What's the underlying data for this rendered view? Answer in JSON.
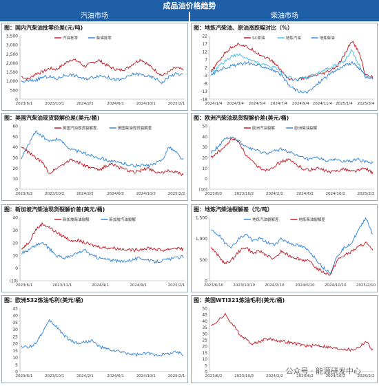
{
  "page": {
    "title": "成品油价格趋势",
    "left_section": "汽油市场",
    "right_section": "柴油市场"
  },
  "colors": {
    "red": "#c0101a",
    "blue": "#2a7fd4",
    "lightblue": "#35b8e6",
    "header": "#1f5fa8"
  },
  "watermark": "公众号 · 能源研发中心",
  "charts": [
    {
      "id": "c1",
      "col": 0,
      "row": 0,
      "title": "图：国内汽柴油批零价差(元/吨)",
      "ylim": [
        0,
        3500
      ],
      "yticks": [
        "0",
        "500",
        "1,000",
        "1,500",
        "2,000",
        "2,500",
        "3,000",
        "3,500"
      ],
      "xticks": [
        "2023/6/1",
        "2023/10/1",
        "2024/2/1",
        "2024/6/1",
        "2024/10/1",
        "2025/2/1"
      ],
      "legend": [
        "汽油批零",
        "柴油批零"
      ],
      "series": [
        {
          "name": "汽油批零",
          "color": "#c0101a",
          "values": [
            1250,
            1100,
            1400,
            1500,
            1700,
            1650,
            1900,
            2200,
            2100,
            1800,
            2000,
            2150,
            1900,
            1700,
            1600,
            1700,
            2000,
            2200,
            1900,
            1600,
            1300,
            1500,
            1750,
            1600
          ]
        },
        {
          "name": "柴油批零",
          "color": "#2a7fd4",
          "values": [
            950,
            1000,
            1050,
            1200,
            1250,
            1100,
            1300,
            1350,
            1250,
            1100,
            1200,
            1300,
            1250,
            1100,
            1050,
            1200,
            1400,
            1350,
            1250,
            1150,
            900,
            1250,
            1400,
            1350
          ]
        }
      ]
    },
    {
      "id": "c2",
      "col": 1,
      "row": 0,
      "title": "图：地炼汽柴油、原油涨跌幅对比（%）",
      "ylim": [
        -18,
        22
      ],
      "yticks": [
        "-18",
        "-13",
        "-8",
        "-3",
        "2",
        "7",
        "12",
        "17",
        "22"
      ],
      "xticks": [
        "2024/1/4",
        "2024/3/4",
        "2024/5/4",
        "2024/7/4",
        "2024/9/4",
        "2024/11/4",
        "2025/1/4",
        "2025/3/4"
      ],
      "legend": [
        "SC原油",
        "地炼汽油",
        "地炼柴油"
      ],
      "series": [
        {
          "name": "SC原油",
          "color": "#c0101a",
          "values": [
            -1,
            5,
            11,
            15,
            17,
            15,
            13,
            10,
            8,
            5,
            0,
            -5,
            -6,
            -5,
            -4,
            -3,
            -2,
            0,
            3,
            10,
            19,
            12,
            -3,
            -4
          ]
        },
        {
          "name": "地炼汽油",
          "color": "#35b8e6",
          "values": [
            -2,
            2,
            6,
            9,
            10,
            8,
            6,
            4,
            3,
            2,
            -1,
            -4,
            -6,
            -5,
            -4,
            -2,
            0,
            2,
            4,
            6,
            13,
            4,
            -4,
            -5
          ]
        },
        {
          "name": "地炼柴油",
          "color": "#2a7fd4",
          "values": [
            -3,
            0,
            2,
            3,
            4,
            5,
            4,
            3,
            2,
            0,
            -3,
            -9,
            -12,
            -14,
            -13,
            -9,
            -5,
            -2,
            1,
            3,
            5,
            2,
            -4,
            -5
          ]
        }
      ]
    },
    {
      "id": "c3",
      "col": 0,
      "row": 1,
      "title": "图：美国汽柴油现货裂解价差(美元/桶)",
      "ylim": [
        0,
        60
      ],
      "yticks": [
        "0",
        "10",
        "20",
        "30",
        "40",
        "50",
        "60"
      ],
      "xticks": [
        "2023/6/2",
        "2023/10/2",
        "2024/2/2",
        "2024/6/2",
        "2024/10/2",
        "2025/2/2"
      ],
      "legend": [
        "美国汽油现货裂解差",
        "美国柴油现货裂解差"
      ],
      "series": [
        {
          "name": "美国汽油现货裂解差",
          "color": "#c0101a",
          "values": [
            40,
            35,
            30,
            25,
            15,
            20,
            24,
            28,
            26,
            22,
            20,
            18,
            22,
            24,
            20,
            18,
            16,
            18,
            20,
            17,
            15,
            18,
            16,
            13
          ]
        },
        {
          "name": "美国柴油现货裂解差",
          "color": "#2a7fd4",
          "values": [
            30,
            42,
            55,
            50,
            45,
            48,
            44,
            38,
            36,
            34,
            32,
            30,
            28,
            26,
            25,
            24,
            22,
            23,
            22,
            24,
            28,
            40,
            35,
            27
          ]
        }
      ]
    },
    {
      "id": "c4",
      "col": 1,
      "row": 1,
      "title": "图：欧洲汽柴油现货裂解价差(美元/桶)",
      "ylim": [
        -10,
        50
      ],
      "yticks": [
        "(10)",
        "0",
        "10",
        "20",
        "30",
        "40",
        "50"
      ],
      "xticks": [
        "2023/6/2",
        "2023/10/2",
        "2024/2/2",
        "2024/6/2",
        "2024/10/2",
        "2025/2/2"
      ],
      "legend": [
        "欧洲汽油裂解",
        "欧洲柴油裂解"
      ],
      "series": [
        {
          "name": "欧洲汽油裂解",
          "color": "#c0101a",
          "values": [
            20,
            25,
            30,
            38,
            35,
            22,
            15,
            10,
            8,
            12,
            16,
            18,
            14,
            10,
            8,
            10,
            8,
            6,
            8,
            9,
            7,
            8,
            10,
            5
          ]
        },
        {
          "name": "欧洲柴油裂解",
          "color": "#2a7fd4",
          "values": [
            25,
            30,
            38,
            40,
            35,
            30,
            28,
            25,
            24,
            26,
            28,
            26,
            22,
            20,
            18,
            20,
            18,
            17,
            18,
            16,
            17,
            18,
            16,
            15
          ]
        }
      ]
    },
    {
      "id": "c5",
      "col": 0,
      "row": 2,
      "title": "图：新加坡汽柴油现货裂解价差(美元/桶)",
      "ylim": [
        -10,
        40
      ],
      "yticks": [
        "(10)",
        "0",
        "10",
        "20",
        "30",
        "40"
      ],
      "xticks": [
        "2023/6/1",
        "2023/11/1",
        "2024/4/1",
        "2024/9/1",
        "2025/2/1"
      ],
      "legend": [
        "新加坡柴油裂解",
        "新加坡汽油裂解"
      ],
      "series": [
        {
          "name": "新加坡柴油裂解",
          "color": "#c0101a",
          "values": [
            15,
            20,
            30,
            35,
            32,
            28,
            25,
            22,
            22,
            20,
            18,
            17,
            16,
            16,
            15,
            15,
            14,
            15,
            16,
            15,
            14,
            15,
            16,
            15
          ]
        },
        {
          "name": "新加坡汽油裂解",
          "color": "#2a7fd4",
          "values": [
            12,
            14,
            18,
            20,
            15,
            10,
            8,
            9,
            12,
            14,
            10,
            8,
            7,
            6,
            5,
            6,
            7,
            8,
            6,
            5,
            6,
            7,
            8,
            9
          ]
        }
      ]
    },
    {
      "id": "c6",
      "col": 1,
      "row": 2,
      "title": "图：地炼汽柴油裂解差（元/吨）",
      "ylim": [
        0,
        1500
      ],
      "yticks": [
        "0",
        "500",
        "1,000",
        "1,500"
      ],
      "xticks": [
        "2023/6/10",
        "2023/10/10",
        "2024/2/10",
        "2024/6/10",
        "2024/10/10",
        "2025/2/10"
      ],
      "legend": [
        "地炼汽油裂解差",
        "地炼柴油裂解差"
      ],
      "series": [
        {
          "name": "地炼汽油裂解差",
          "color": "#2a7fd4",
          "values": [
            1200,
            1100,
            900,
            800,
            1000,
            1100,
            950,
            1000,
            900,
            850,
            1000,
            900,
            850,
            800,
            700,
            500,
            300,
            200,
            600,
            800,
            900,
            1200,
            1500,
            1100
          ]
        },
        {
          "name": "地炼柴油裂解差",
          "color": "#c0101a",
          "values": [
            800,
            600,
            400,
            500,
            700,
            800,
            650,
            700,
            600,
            500,
            700,
            600,
            550,
            500,
            450,
            300,
            200,
            150,
            500,
            600,
            700,
            800,
            900,
            700
          ]
        }
      ]
    },
    {
      "id": "c7",
      "col": 0,
      "row": 3,
      "title": "图：欧洲532炼油毛利(美元/桶)",
      "ylim": [
        0,
        45
      ],
      "yticks": [
        "0",
        "5",
        "10",
        "15",
        "20",
        "25",
        "30",
        "35",
        "40",
        "45"
      ],
      "xticks": [
        "2023/6/1",
        "2023/10/1",
        "2024/2/1",
        "2024/6/1",
        "2024/10/1",
        "2025/2/1"
      ],
      "legend": [],
      "series": [
        {
          "name": "",
          "color": "#2a7fd4",
          "values": [
            18,
            17,
            20,
            28,
            36,
            32,
            26,
            22,
            20,
            21,
            22,
            18,
            16,
            15,
            14,
            13,
            12,
            12,
            13,
            12,
            12,
            13,
            14,
            12
          ]
        }
      ]
    },
    {
      "id": "c8",
      "col": 1,
      "row": 3,
      "title": "图：美国WTI321炼油毛利(美元/桶)",
      "ylim": [
        0,
        50
      ],
      "yticks": [
        "0",
        "5",
        "10",
        "15",
        "20",
        "25",
        "30",
        "35",
        "40",
        "45",
        "50"
      ],
      "xticks": [
        "2023/6/2",
        "2023/10/2",
        "2024/2/2",
        "2024/6/2",
        "2024/10/2",
        "2025/2/2"
      ],
      "legend": [],
      "series": [
        {
          "name": "",
          "color": "#c0101a",
          "values": [
            36,
            40,
            45,
            38,
            30,
            25,
            22,
            24,
            26,
            25,
            24,
            23,
            22,
            21,
            20,
            21,
            20,
            19,
            18,
            18,
            17,
            19,
            24,
            17
          ]
        }
      ]
    }
  ]
}
